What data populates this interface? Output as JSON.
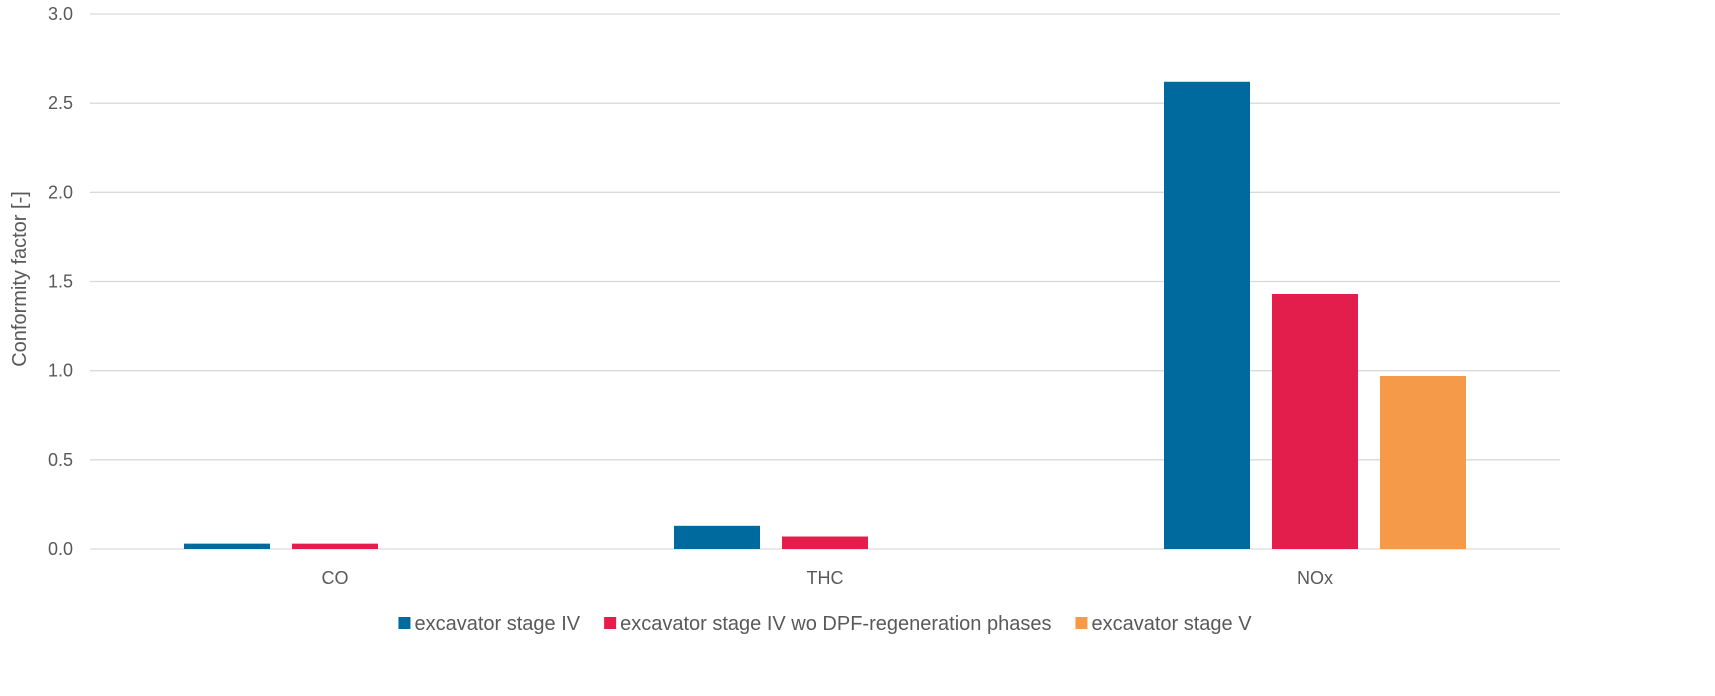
{
  "chart_data": {
    "type": "bar",
    "categories": [
      "CO",
      "THC",
      "NOx"
    ],
    "series": [
      {
        "name": "excavator stage IV",
        "values": [
          0.03,
          0.13,
          2.62
        ],
        "color": "#006a9f"
      },
      {
        "name": "excavator stage IV wo DPF-regeneration phases",
        "values": [
          0.03,
          0.07,
          1.43
        ],
        "color": "#e31e4d"
      },
      {
        "name": "excavator stage V",
        "values": [
          null,
          null,
          0.97
        ],
        "color": "#f59a48"
      }
    ],
    "title": "",
    "xlabel": "",
    "ylabel": "Conformity factor [-]",
    "ylim": [
      0,
      3.0
    ],
    "yticks": [
      "0.0",
      "0.5",
      "1.0",
      "1.5",
      "2.0",
      "2.5",
      "3.0"
    ],
    "grid": true,
    "legend": "bottom-center",
    "gridline_color": "#d9d9d9"
  }
}
